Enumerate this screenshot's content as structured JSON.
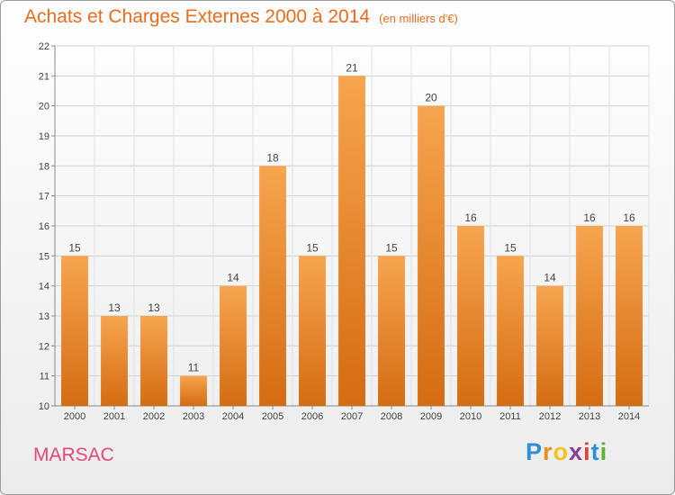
{
  "title": {
    "main": "Achats et Charges Externes 2000 à 2014",
    "unit": "(en milliers d'€)"
  },
  "location": "MARSAC",
  "brand": {
    "text": "Proxiti",
    "letters": [
      {
        "char": "P",
        "color": "#2f8fd6"
      },
      {
        "char": "r",
        "color": "#f08a1c"
      },
      {
        "char": "o",
        "color": "#f2c318"
      },
      {
        "char": "x",
        "color": "#8a3fa0"
      },
      {
        "char": "i",
        "color": "#e63d3d"
      },
      {
        "char": "t",
        "color": "#2f8fd6"
      },
      {
        "char": "i",
        "color": "#5cb531"
      }
    ]
  },
  "colors": {
    "bar_light": "#f7a54f",
    "bar_dark": "#d46c12",
    "title": "#ea6b1e",
    "location": "#e8457c"
  },
  "chart_data": {
    "type": "bar",
    "title": "Achats et Charges Externes 2000 à 2014",
    "subtitle": "(en milliers d'€)",
    "xlabel": "",
    "ylabel": "",
    "categories": [
      "2000",
      "2001",
      "2002",
      "2003",
      "2004",
      "2005",
      "2006",
      "2007",
      "2008",
      "2009",
      "2010",
      "2011",
      "2012",
      "2013",
      "2014"
    ],
    "values": [
      15,
      13,
      13,
      11,
      14,
      18,
      15,
      21,
      15,
      20,
      16,
      15,
      14,
      16,
      16
    ],
    "ylim": [
      10,
      22
    ],
    "yticks": [
      10,
      11,
      12,
      13,
      14,
      15,
      16,
      17,
      18,
      19,
      20,
      21,
      22
    ],
    "grid": true,
    "legend": "none"
  }
}
